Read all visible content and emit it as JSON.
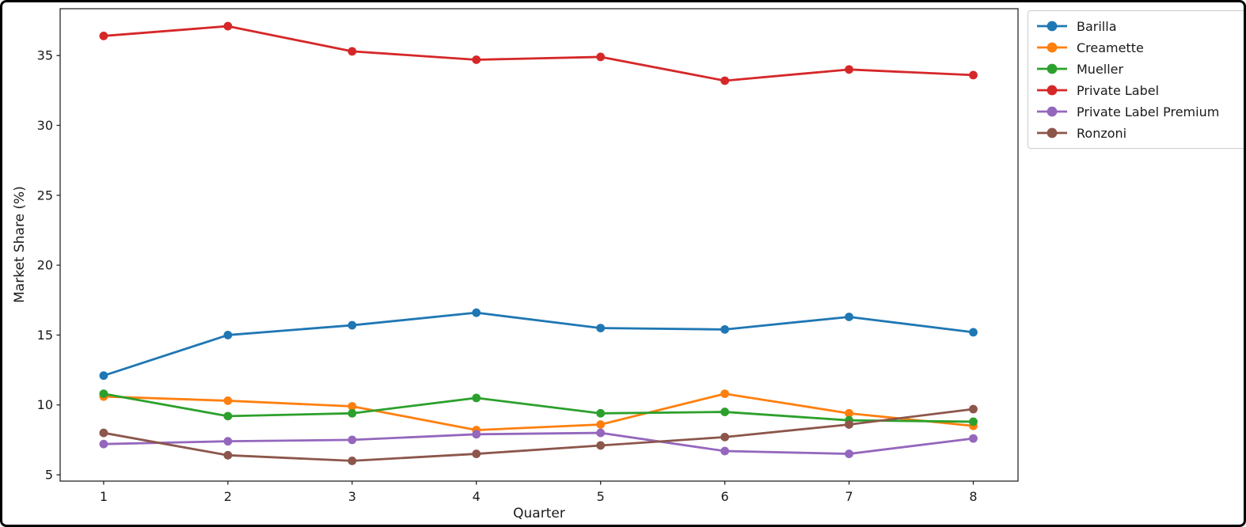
{
  "figure": {
    "background_color": "#ffffff",
    "frame_color": "#000000",
    "spine_color": "#262626",
    "text_color": "#1a1a1a",
    "legend_border_color": "#cccccc"
  },
  "chart_data": {
    "type": "line",
    "title": "",
    "xlabel": "Quarter",
    "ylabel": "Market Share (%)",
    "grid": false,
    "legend_position": "outside-top-right",
    "x": [
      1,
      2,
      3,
      4,
      5,
      6,
      7,
      8
    ],
    "xticks": [
      1,
      2,
      3,
      4,
      5,
      6,
      7,
      8
    ],
    "yticks": [
      5,
      10,
      15,
      20,
      25,
      30,
      35
    ],
    "xlim": [
      0.65,
      8.36
    ],
    "ylim": [
      4.55,
      38.35
    ],
    "marker": "circle",
    "series": [
      {
        "name": "Barilla",
        "color": "#1f77b4",
        "values": [
          12.1,
          15.0,
          15.7,
          16.6,
          15.5,
          15.4,
          16.3,
          15.2
        ]
      },
      {
        "name": "Creamette",
        "color": "#ff7f0e",
        "values": [
          10.6,
          10.3,
          9.9,
          8.2,
          8.6,
          10.8,
          9.4,
          8.5
        ]
      },
      {
        "name": "Mueller",
        "color": "#2ca02c",
        "values": [
          10.8,
          9.2,
          9.4,
          10.5,
          9.4,
          9.5,
          8.9,
          8.8
        ]
      },
      {
        "name": "Private Label",
        "color": "#d62728",
        "values": [
          36.4,
          37.1,
          35.3,
          34.7,
          34.9,
          33.2,
          34.0,
          33.6
        ]
      },
      {
        "name": "Private Label Premium",
        "color": "#9467bd",
        "values": [
          7.2,
          7.4,
          7.5,
          7.9,
          8.0,
          6.7,
          6.5,
          7.6
        ]
      },
      {
        "name": "Ronzoni",
        "color": "#8c564b",
        "values": [
          8.0,
          6.4,
          6.0,
          6.5,
          7.1,
          7.7,
          8.6,
          9.7
        ]
      }
    ]
  }
}
